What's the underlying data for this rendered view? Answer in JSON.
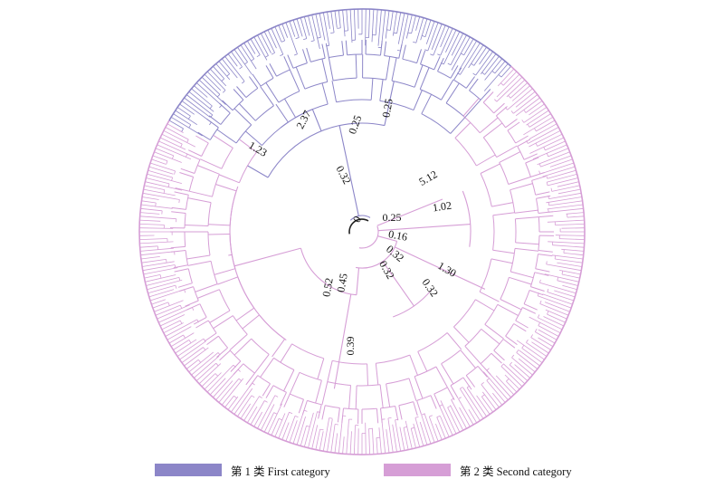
{
  "legend": {
    "first": {
      "label": "第 1 类 First category",
      "color": "#8c86c8"
    },
    "second": {
      "label": "第 2 类 Second category",
      "color": "#d69ed6"
    }
  },
  "colors": {
    "first_branch": "#8c86c8",
    "second_branch": "#d69ed6",
    "center_arc": "#222222"
  },
  "tree": {
    "root_label": "0",
    "branch_labels": [
      "2.37",
      "0.25",
      "0.25",
      "1.23",
      "0.32",
      "5.12",
      "1.02",
      "0.25",
      "0.16",
      "0.32",
      "1.30",
      "0.32",
      "0.32",
      "0.52",
      "0.45",
      "0.39"
    ]
  }
}
